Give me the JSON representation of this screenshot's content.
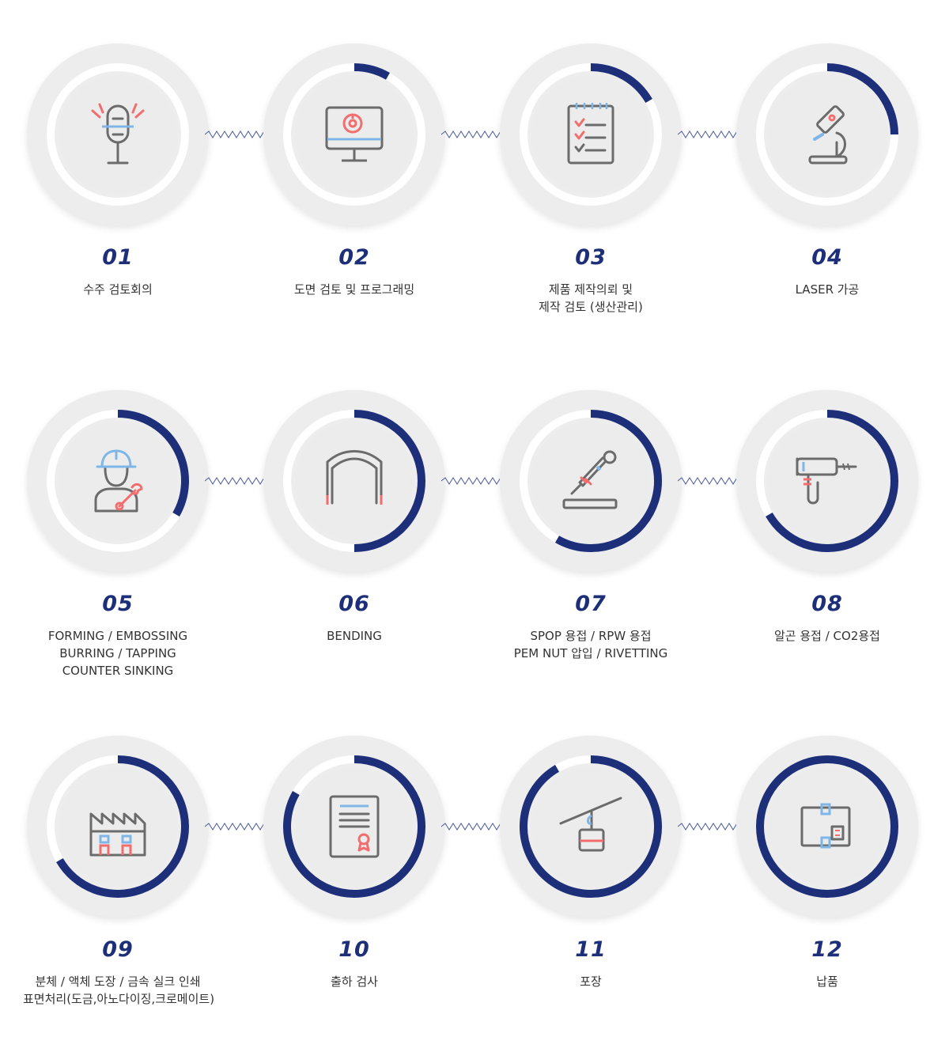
{
  "colors": {
    "progress": "#1e2f7a",
    "icon_gray": "#6b6b6b",
    "icon_red": "#f26d6d",
    "icon_blue": "#7fb6e8",
    "connector": "#4a5b9c"
  },
  "steps": [
    {
      "number": "01",
      "lines": [
        "수주 검토회의"
      ],
      "icon": "microphone-icon",
      "progress": 0
    },
    {
      "number": "02",
      "lines": [
        "도면 검토 및 프로그래밍"
      ],
      "icon": "monitor-chart-icon",
      "progress": 0.0833
    },
    {
      "number": "03",
      "lines": [
        "제품 제작의뢰 및",
        "제작 검토 (생산관리)"
      ],
      "icon": "checklist-icon",
      "progress": 0.1667
    },
    {
      "number": "04",
      "lines": [
        "LASER 가공"
      ],
      "icon": "microscope-icon",
      "progress": 0.25
    },
    {
      "number": "05",
      "lines": [
        "FORMING / EMBOSSING",
        "BURRING / TAPPING",
        "COUNTER SINKING"
      ],
      "icon": "worker-icon",
      "progress": 0.3333
    },
    {
      "number": "06",
      "lines": [
        "BENDING"
      ],
      "icon": "bending-arch-icon",
      "progress": 0.5
    },
    {
      "number": "07",
      "lines": [
        "SPOP 용접 / RPW 용접",
        "PEM NUT 압입 / RIVETTING"
      ],
      "icon": "welding-torch-icon",
      "progress": 0.5833
    },
    {
      "number": "08",
      "lines": [
        "알곤 용접 / CO2용접"
      ],
      "icon": "drill-icon",
      "progress": 0.6667
    },
    {
      "number": "09",
      "lines": [
        "분체 / 액체 도장 / 금속 실크 인쇄",
        "표면처리(도금,아노다이징,크로메이트)"
      ],
      "icon": "factory-icon",
      "progress": 0.6667
    },
    {
      "number": "10",
      "lines": [
        "출하 검사"
      ],
      "icon": "certificate-icon",
      "progress": 0.8333
    },
    {
      "number": "11",
      "lines": [
        "포장"
      ],
      "icon": "cable-car-icon",
      "progress": 0.9167
    },
    {
      "number": "12",
      "lines": [
        "납품"
      ],
      "icon": "package-box-icon",
      "progress": 1
    }
  ]
}
